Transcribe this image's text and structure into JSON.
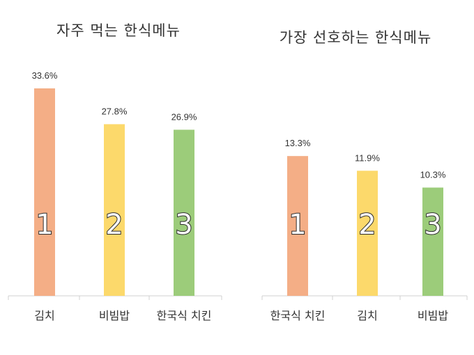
{
  "chart_data": [
    {
      "type": "bar",
      "title": "자주 먹는 한식메뉴",
      "categories": [
        "김치",
        "비빔밥",
        "한국식 치킨"
      ],
      "values": [
        33.6,
        27.8,
        26.9
      ],
      "value_labels": [
        "33.6%",
        "27.8%",
        "26.9%"
      ],
      "rank_labels": [
        "1",
        "2",
        "3"
      ],
      "colors": [
        "#f4ae86",
        "#fcd96b",
        "#9ccc7a"
      ],
      "unit": "%",
      "grid": false,
      "legend": "none"
    },
    {
      "type": "bar",
      "title": "가장 선호하는 한식메뉴",
      "categories": [
        "한국식 치킨",
        "김치",
        "비빔밥"
      ],
      "values": [
        13.3,
        11.9,
        10.3
      ],
      "value_labels": [
        "13.3%",
        "11.9%",
        "10.3%"
      ],
      "rank_labels": [
        "1",
        "2",
        "3"
      ],
      "colors": [
        "#f4ae86",
        "#fcd96b",
        "#9ccc7a"
      ],
      "unit": "%",
      "grid": false,
      "legend": "none"
    }
  ]
}
